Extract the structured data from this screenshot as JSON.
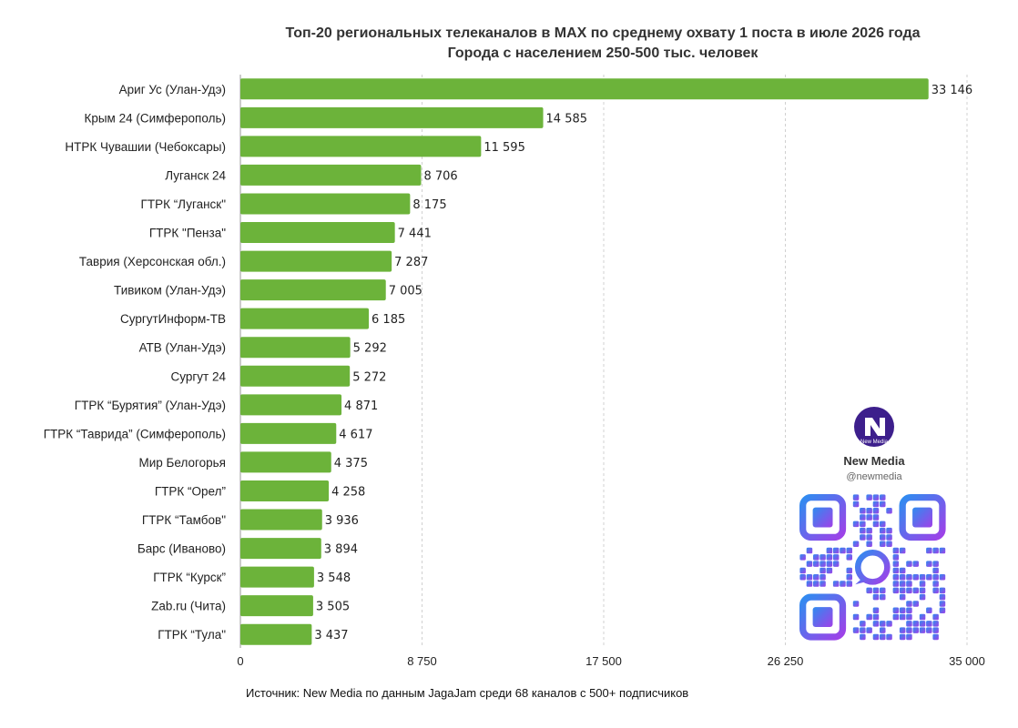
{
  "chart_data": {
    "type": "bar",
    "orientation": "horizontal",
    "title": "Топ-20 региональных телеканалов в MAX по среднему охвату 1 поста в июле 2026 года",
    "subtitle": "Города с населением 250-500 тыс. человек",
    "categories": [
      "Ариг Ус (Улан-Удэ)",
      "Крым 24 (Симферополь)",
      "НТРК Чувашии (Чебоксары)",
      "Луганск 24",
      "ГТРК “Луганск\"",
      "ГТРК \"Пенза\"",
      "Таврия (Херсонская обл.)",
      "Тивиком (Улан-Удэ)",
      "СургутИнформ-ТВ",
      "АТВ (Улан-Удэ)",
      "Сургут 24",
      "ГТРК “Бурятия” (Улан-Удэ)",
      "ГТРК “Таврида” (Симферополь)",
      "Мир Белогорья",
      "ГТРК “Орел”",
      "ГТРК “Тамбов\"",
      "Барс (Иваново)",
      "ГТРК “Курск”",
      "Zab.ru (Чита)",
      "ГТРК “Тула\""
    ],
    "values": [
      33146,
      14585,
      11595,
      8706,
      8175,
      7441,
      7287,
      7005,
      6185,
      5292,
      5272,
      4871,
      4617,
      4375,
      4258,
      3936,
      3894,
      3548,
      3505,
      3437
    ],
    "value_labels": [
      "33 146",
      "14 585",
      "11 595",
      "8 706",
      "8 175",
      "7 441",
      "7 287",
      "7 005",
      "6 185",
      "5 292",
      "5 272",
      "4 871",
      "4 617",
      "4 375",
      "4 258",
      "3 936",
      "3 894",
      "3 548",
      "3 505",
      "3 437"
    ],
    "xlim": [
      0,
      35000
    ],
    "x_ticks": [
      0,
      8750,
      17500,
      26250,
      35000
    ],
    "x_tick_labels": [
      "0",
      "8 750",
      "17 500",
      "26 250",
      "35 000"
    ],
    "grid": true,
    "bar_color": "#6cb33a"
  },
  "source_note": "Источник: New Media по данным JagaJam среди 68 каналов с 500+ подписчиков",
  "brand": {
    "name": "New Media",
    "handle": "@newmedia",
    "logo_text": "New Media",
    "logo_color": "#3d1f8c",
    "qr_gradient": [
      "#2f8cf0",
      "#a040e8"
    ]
  }
}
